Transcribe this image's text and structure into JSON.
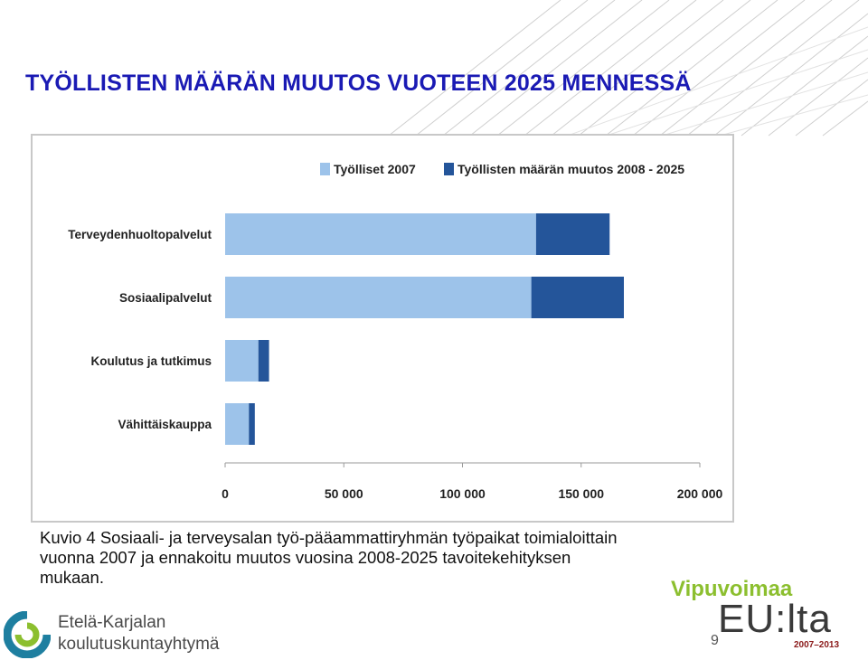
{
  "slide": {
    "title": "TYÖLLISTEN MÄÄRÄN MUUTOS VUOTEEN 2025 MENNESSÄ",
    "caption_lines": [
      "Kuvio 4 Sosiaali- ja terveysalan työ-pääammattiryhmän työpaikat toimialoittain",
      "vuonna 2007 ja ennakoitu muutos vuosina 2008-2025 tavoitekehityksen",
      "mukaan."
    ],
    "page_number": "9"
  },
  "logos": {
    "left_line1": "Etelä-Karjalan",
    "left_line2": "koulutuskuntayhtymä",
    "right_vipuvoimaa": "Vipuvoimaa",
    "right_eulta": "EU:lta",
    "right_period": "2007–2013"
  },
  "colors": {
    "title": "#1a1ab4",
    "series_2007": "#9dc3ea",
    "series_change": "#24559a",
    "logo_green": "#8cbf2f",
    "logo_teal": "#1e7fa0"
  },
  "chart_data": {
    "type": "bar",
    "orientation": "horizontal",
    "stacked": true,
    "categories": [
      "Terveydenhuoltopalvelut",
      "Sosiaalipalvelut",
      "Koulutus ja tutkimus",
      "Vähittäiskauppa"
    ],
    "series": [
      {
        "name": "Työlliset 2007",
        "values": [
          131000,
          129000,
          14000,
          10000
        ],
        "color": "#9dc3ea"
      },
      {
        "name": "Työllisten määrän muutos 2008 - 2025",
        "values": [
          31000,
          39000,
          4500,
          2500
        ],
        "color": "#24559a"
      }
    ],
    "xlim": [
      0,
      200000
    ],
    "xticks": [
      0,
      50000,
      100000,
      150000,
      200000
    ],
    "xtick_labels": [
      "0",
      "50 000",
      "100 000",
      "150 000",
      "200 000"
    ],
    "legend_position": "top",
    "grid": false
  }
}
